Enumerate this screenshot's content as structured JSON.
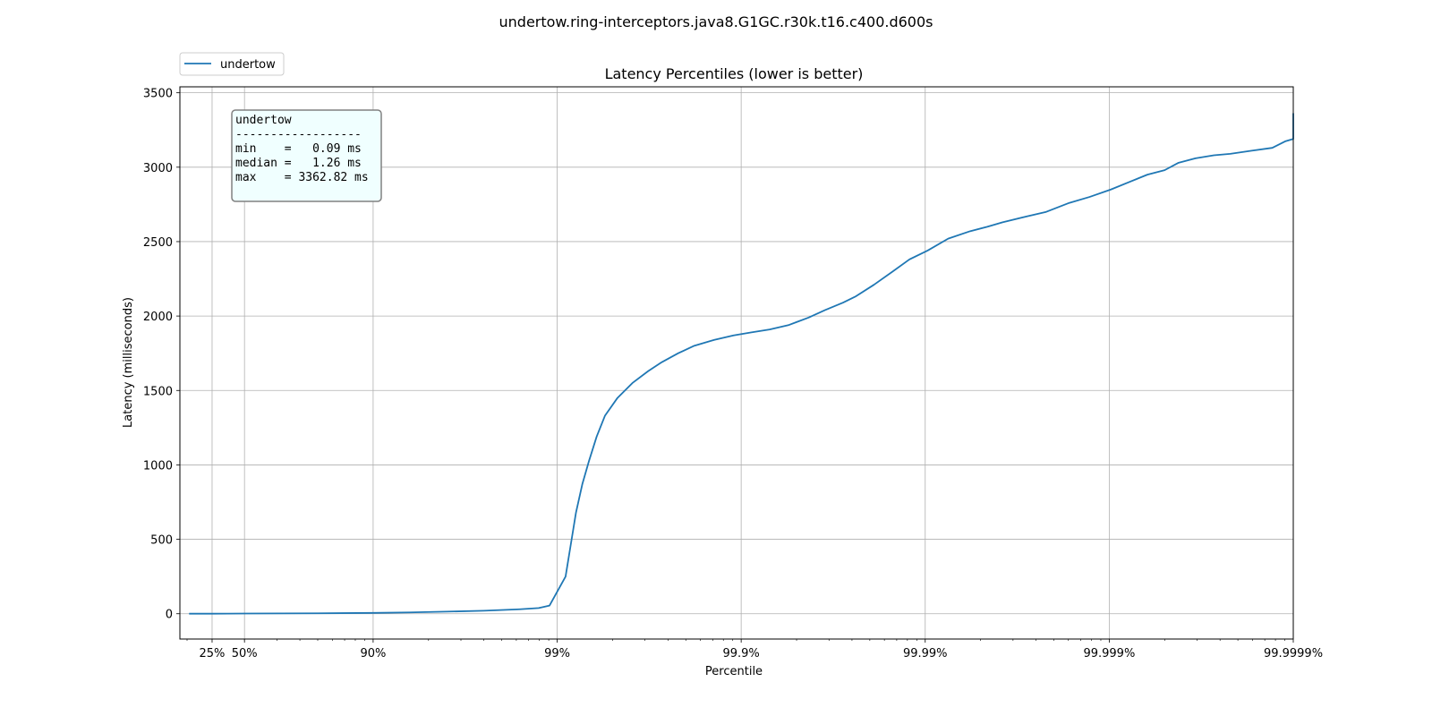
{
  "chart_data": {
    "type": "line",
    "suptitle": "undertow.ring-interceptors.java8.G1GC.r30k.t16.c400.d600s",
    "title": "Latency Percentiles (lower is better)",
    "xlabel": "Percentile",
    "ylabel": "Latency (milliseconds)",
    "x_scale": "log of 1/(1-percentile)",
    "xlim": [
      0,
      99.9999
    ],
    "ylim": [
      -170,
      3540
    ],
    "grid": true,
    "legend": {
      "position": "top-left, outside plot",
      "entries": [
        "undertow"
      ]
    },
    "x_ticks": [
      {
        "p": 25,
        "label": "25%"
      },
      {
        "p": 50,
        "label": "50%"
      },
      {
        "p": 90,
        "label": "90%"
      },
      {
        "p": 99,
        "label": "99%"
      },
      {
        "p": 99.9,
        "label": "99.9%"
      },
      {
        "p": 99.99,
        "label": "99.99%"
      },
      {
        "p": 99.999,
        "label": "99.999%"
      },
      {
        "p": 99.9999,
        "label": "99.9999%"
      }
    ],
    "y_ticks": [
      0,
      500,
      1000,
      1500,
      2000,
      2500,
      3000,
      3500
    ],
    "series": [
      {
        "name": "undertow",
        "color": "#1f77b4",
        "points": [
          [
            0,
            0.09
          ],
          [
            25,
            0.3
          ],
          [
            50,
            1.26
          ],
          [
            68.4,
            2.0
          ],
          [
            80,
            3.0
          ],
          [
            90,
            5.5
          ],
          [
            93.7,
            9
          ],
          [
            96,
            14
          ],
          [
            97.5,
            20
          ],
          [
            98.4,
            30
          ],
          [
            98.74,
            38
          ],
          [
            98.9,
            55
          ],
          [
            99.1,
            250
          ],
          [
            99.21,
            680
          ],
          [
            99.27,
            870
          ],
          [
            99.33,
            1030
          ],
          [
            99.39,
            1190
          ],
          [
            99.45,
            1330
          ],
          [
            99.53,
            1450
          ],
          [
            99.61,
            1550
          ],
          [
            99.68,
            1630
          ],
          [
            99.73,
            1690
          ],
          [
            99.78,
            1750
          ],
          [
            99.82,
            1800
          ],
          [
            99.86,
            1840
          ],
          [
            99.89,
            1870
          ],
          [
            99.912,
            1890
          ],
          [
            99.93,
            1910
          ],
          [
            99.945,
            1940
          ],
          [
            99.957,
            1990
          ],
          [
            99.965,
            2040
          ],
          [
            99.972,
            2090
          ],
          [
            99.976,
            2130
          ],
          [
            99.981,
            2210
          ],
          [
            99.985,
            2300
          ],
          [
            99.9878,
            2380
          ],
          [
            99.9903,
            2440
          ],
          [
            99.9925,
            2520
          ],
          [
            99.9943,
            2570
          ],
          [
            99.9954,
            2600
          ],
          [
            99.9962,
            2630
          ],
          [
            99.9972,
            2670
          ],
          [
            99.9978,
            2700
          ],
          [
            99.99835,
            2760
          ],
          [
            99.99872,
            2800
          ],
          [
            99.99902,
            2850
          ],
          [
            99.99922,
            2900
          ],
          [
            99.99938,
            2950
          ],
          [
            99.9995,
            2980
          ],
          [
            99.99958,
            3030
          ],
          [
            99.99966,
            3060
          ],
          [
            99.99973,
            3080
          ],
          [
            99.99978,
            3090
          ],
          [
            99.99983,
            3110
          ],
          [
            99.99987,
            3130
          ],
          [
            99.99989,
            3175
          ],
          [
            99.99991,
            3190
          ],
          [
            99.99993,
            3215
          ],
          [
            99.99995,
            3230
          ],
          [
            99.99996,
            3240
          ],
          [
            99.999968,
            3255
          ],
          [
            99.99997,
            3285
          ],
          [
            99.999975,
            3300
          ],
          [
            99.99998,
            3305
          ],
          [
            99.999981,
            3315
          ],
          [
            99.999987,
            3318
          ],
          [
            99.999988,
            3328
          ],
          [
            99.99999,
            3330
          ],
          [
            99.9999,
            3340
          ],
          [
            99.99999,
            3362.82
          ]
        ]
      }
    ]
  },
  "stats_box": {
    "lines": [
      "undertow",
      "------------------",
      "min    =   0.09 ms",
      "median =   1.26 ms",
      "max    = 3362.82 ms"
    ]
  }
}
